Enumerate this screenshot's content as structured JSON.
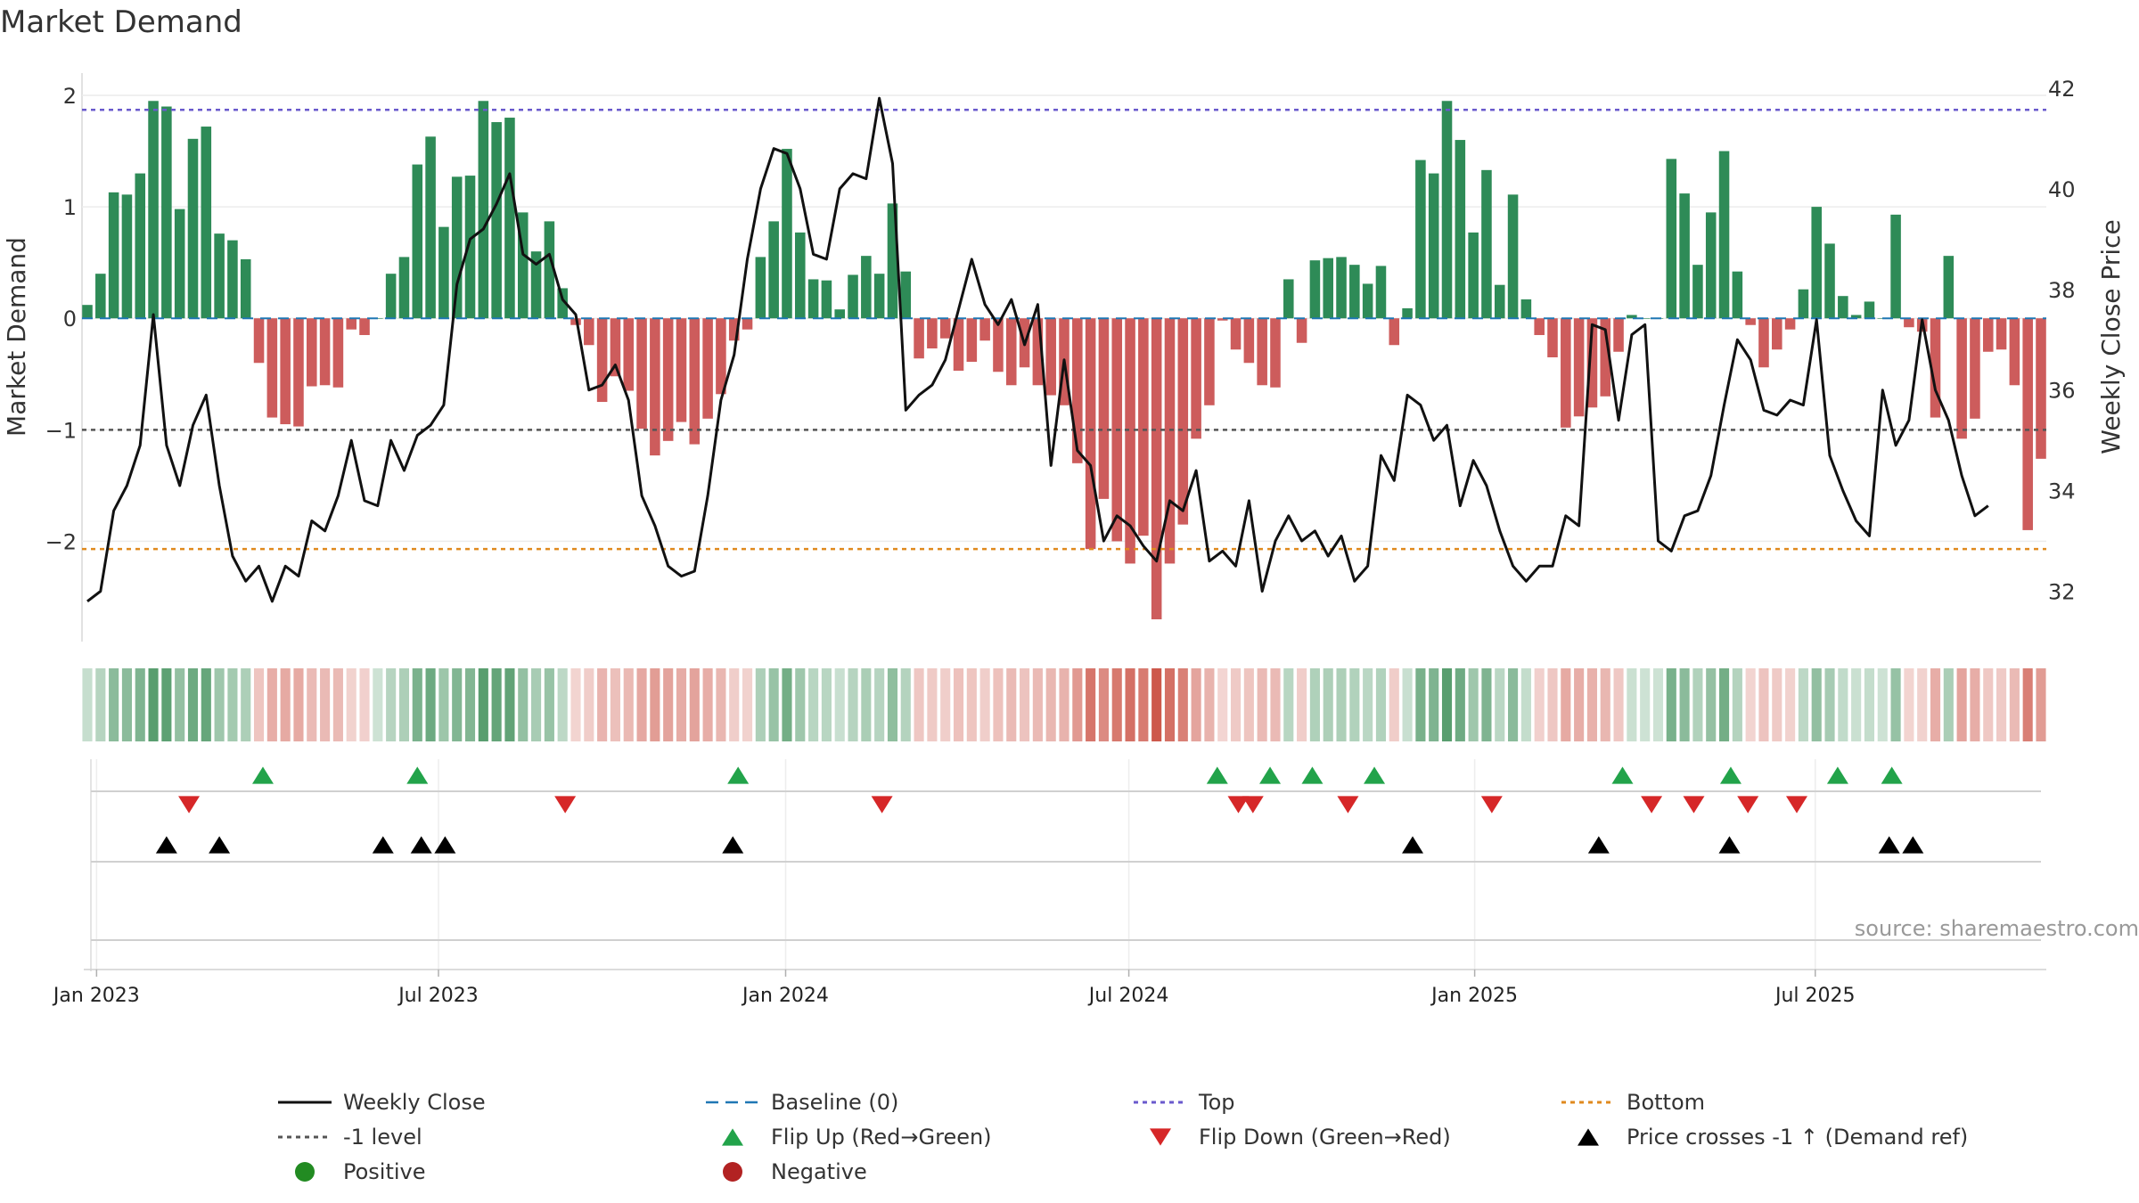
{
  "chart_data": {
    "type": "bar",
    "title": "Market Demand",
    "source": "source: sharemaestro.com",
    "left_axis": {
      "label": "Market Demand",
      "range": [
        -2.9,
        2.2
      ],
      "ticks": [
        2,
        1,
        0,
        -1,
        -2
      ],
      "tick_labels": [
        "2",
        "1",
        "0",
        "−1",
        "−2"
      ]
    },
    "right_axis": {
      "label": "Weekly Close Price",
      "range": [
        31.0,
        42.3
      ],
      "ticks": [
        42,
        40,
        38,
        36,
        34,
        32
      ],
      "tick_labels": [
        "42",
        "40",
        "38",
        "36",
        "34",
        "32"
      ]
    },
    "x_axis": {
      "start": "2022-12-26",
      "labels": [
        {
          "text": "Jan 2023",
          "week": 0.7
        },
        {
          "text": "Jul 2023",
          "week": 26.6
        },
        {
          "text": "Jan 2024",
          "week": 52.9
        },
        {
          "text": "Jul 2024",
          "week": 78.9
        },
        {
          "text": "Jan 2025",
          "week": 105.1
        },
        {
          "text": "Jul 2025",
          "week": 130.9
        }
      ]
    },
    "reference_lines": {
      "top": 1.87,
      "bottom": -2.07,
      "minus_one": -1,
      "baseline": 0
    },
    "demand": [
      0.12,
      0.4,
      1.13,
      1.11,
      1.3,
      1.95,
      1.9,
      0.98,
      1.61,
      1.72,
      0.76,
      0.7,
      0.53,
      -0.4,
      -0.89,
      -0.95,
      -0.97,
      -0.61,
      -0.6,
      -0.62,
      -0.1,
      -0.15,
      0.0,
      0.4,
      0.55,
      1.38,
      1.63,
      0.82,
      1.27,
      1.28,
      1.95,
      1.76,
      1.8,
      0.95,
      0.6,
      0.87,
      0.27,
      -0.06,
      -0.24,
      -0.75,
      -0.52,
      -0.65,
      -0.99,
      -1.23,
      -1.1,
      -0.93,
      -1.13,
      -0.9,
      -0.68,
      -0.2,
      -0.1,
      0.55,
      0.87,
      1.52,
      0.77,
      0.35,
      0.34,
      0.08,
      0.39,
      0.56,
      0.4,
      1.03,
      0.42,
      -0.36,
      -0.27,
      -0.18,
      -0.47,
      -0.39,
      -0.2,
      -0.48,
      -0.6,
      -0.44,
      -0.6,
      -0.69,
      -0.78,
      -1.3,
      -2.07,
      -1.62,
      -2.0,
      -2.2,
      -1.95,
      -2.7,
      -2.2,
      -1.85,
      -1.08,
      -0.78,
      -0.02,
      -0.28,
      -0.4,
      -0.6,
      -0.62,
      0.35,
      -0.22,
      0.52,
      0.54,
      0.55,
      0.48,
      0.31,
      0.47,
      -0.24,
      0.09,
      1.42,
      1.3,
      1.95,
      1.6,
      0.77,
      1.33,
      0.3,
      1.11,
      0.17,
      -0.15,
      -0.35,
      -0.98,
      -0.88,
      -0.8,
      -0.7,
      -0.3,
      0.03,
      0.0,
      0.0,
      1.43,
      1.12,
      0.48,
      0.95,
      1.5,
      0.42,
      -0.06,
      -0.44,
      -0.28,
      -0.1,
      0.26,
      1.0,
      0.67,
      0.2,
      0.03,
      0.15,
      0.0,
      0.93,
      -0.08,
      -0.12,
      -0.89,
      0.56,
      -1.08,
      -0.9,
      -0.3,
      -0.28,
      -0.6,
      -1.9,
      -1.26
    ],
    "weekly_close": [
      31.8,
      32.0,
      33.6,
      34.1,
      34.9,
      37.5,
      34.9,
      34.1,
      35.3,
      35.9,
      34.1,
      32.7,
      32.2,
      32.5,
      31.8,
      32.5,
      32.3,
      33.4,
      33.2,
      33.9,
      35.0,
      33.8,
      33.7,
      35.0,
      34.4,
      35.1,
      35.3,
      35.7,
      38.1,
      39.0,
      39.2,
      39.7,
      40.3,
      38.7,
      38.5,
      38.7,
      37.8,
      37.5,
      36.0,
      36.1,
      36.5,
      35.8,
      33.9,
      33.3,
      32.5,
      32.3,
      32.4,
      33.9,
      35.8,
      36.7,
      38.6,
      40.0,
      40.8,
      40.7,
      40.0,
      38.7,
      38.6,
      40.0,
      40.3,
      40.2,
      41.8,
      40.5,
      35.6,
      35.9,
      36.1,
      36.6,
      37.6,
      38.6,
      37.7,
      37.3,
      37.8,
      36.9,
      37.7,
      34.5,
      36.6,
      34.8,
      34.5,
      33.0,
      33.5,
      33.3,
      32.9,
      32.6,
      33.8,
      33.6,
      34.4,
      32.6,
      32.8,
      32.5,
      33.8,
      32.0,
      33.0,
      33.5,
      33.0,
      33.2,
      32.7,
      33.1,
      32.2,
      32.5,
      34.7,
      34.2,
      35.9,
      35.7,
      35.0,
      35.3,
      33.7,
      34.6,
      34.1,
      33.2,
      32.5,
      32.2,
      32.5,
      32.5,
      33.5,
      33.3,
      37.3,
      37.2,
      35.4,
      37.1,
      37.3,
      33.0,
      32.8,
      33.5,
      33.6,
      34.3,
      35.7,
      37.0,
      36.6,
      35.6,
      35.5,
      35.8,
      35.7,
      37.4,
      34.7,
      34.0,
      33.4,
      33.1,
      36.0,
      34.9,
      35.4,
      37.4,
      36.0,
      35.4,
      34.3,
      33.5,
      33.7
    ],
    "heatmap_colors": [
      "#1b7a3a",
      "#c94a3c"
    ],
    "flip_up_weeks": [
      13.3,
      25,
      49.3,
      85.6,
      89.6,
      92.8,
      97.5,
      116.3,
      124.5,
      132.6,
      136.7
    ],
    "flip_down_weeks": [
      7.7,
      36.2,
      60.2,
      87.2,
      88.3,
      95.5,
      106.4,
      118.5,
      121.7,
      125.8,
      129.5
    ],
    "price_cross_weeks": [
      6,
      10,
      22.4,
      25.3,
      27.1,
      48.9,
      100.4,
      114.5,
      124.4,
      136.5,
      138.3
    ],
    "legend": [
      {
        "label": "Weekly Close",
        "key": "line",
        "color": "#111111"
      },
      {
        "label": "Baseline (0)",
        "key": "dash",
        "color": "#1f77b4"
      },
      {
        "label": "Top",
        "key": "dot",
        "color": "#6a5acd"
      },
      {
        "label": "Bottom",
        "key": "dot",
        "color": "#e08a1e"
      },
      {
        "label": "-1 level",
        "key": "dot",
        "color": "#555555"
      },
      {
        "label": "Flip Up (Red→Green)",
        "key": "tri-up",
        "color": "#22a34a"
      },
      {
        "label": "Flip Down (Green→Red)",
        "key": "tri-down",
        "color": "#d62728"
      },
      {
        "label": "Price crosses -1 ↑ (Demand ref)",
        "key": "tri-up",
        "color": "#000000"
      },
      {
        "label": "Positive",
        "key": "circle",
        "color": "#228b22"
      },
      {
        "label": "Negative",
        "key": "circle",
        "color": "#b22222"
      }
    ],
    "colors": {
      "positive_bar": "#2e8b57",
      "negative_bar": "#cd5c5c"
    }
  }
}
